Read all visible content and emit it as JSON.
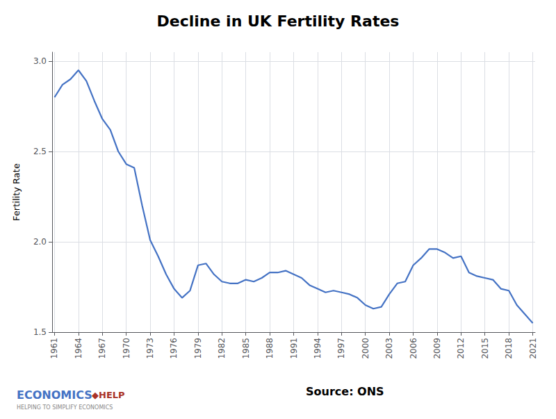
{
  "chart_data": {
    "type": "line",
    "title": "Decline in UK Fertility Rates",
    "ylabel": "Fertility Rate",
    "x": [
      1961,
      1962,
      1963,
      1964,
      1965,
      1966,
      1967,
      1968,
      1969,
      1970,
      1971,
      1972,
      1973,
      1974,
      1975,
      1976,
      1977,
      1978,
      1979,
      1980,
      1981,
      1982,
      1983,
      1984,
      1985,
      1986,
      1987,
      1988,
      1989,
      1990,
      1991,
      1992,
      1993,
      1994,
      1995,
      1996,
      1997,
      1998,
      1999,
      2000,
      2001,
      2002,
      2003,
      2004,
      2005,
      2006,
      2007,
      2008,
      2009,
      2010,
      2011,
      2012,
      2013,
      2014,
      2015,
      2016,
      2017,
      2018,
      2019,
      2020,
      2021
    ],
    "values": [
      2.8,
      2.87,
      2.9,
      2.95,
      2.89,
      2.78,
      2.68,
      2.62,
      2.5,
      2.43,
      2.41,
      2.2,
      2.01,
      1.92,
      1.82,
      1.74,
      1.69,
      1.73,
      1.87,
      1.88,
      1.82,
      1.78,
      1.77,
      1.77,
      1.79,
      1.78,
      1.8,
      1.83,
      1.83,
      1.84,
      1.82,
      1.8,
      1.76,
      1.74,
      1.72,
      1.73,
      1.72,
      1.71,
      1.69,
      1.65,
      1.63,
      1.64,
      1.71,
      1.77,
      1.78,
      1.87,
      1.91,
      1.96,
      1.96,
      1.94,
      1.91,
      1.92,
      1.83,
      1.81,
      1.8,
      1.79,
      1.74,
      1.73,
      1.65,
      1.6,
      1.55
    ],
    "color": "#4472C4",
    "xlim": [
      1960.7,
      2021.3
    ],
    "xticks": [
      1961,
      1964,
      1967,
      1970,
      1973,
      1976,
      1979,
      1982,
      1985,
      1988,
      1991,
      1994,
      1997,
      2000,
      2003,
      2006,
      2009,
      2012,
      2015,
      2018,
      2021
    ],
    "ylim": [
      1.5,
      3.05
    ],
    "yticks": [
      1.5,
      {
        "value": 2,
        "label": "2.0"
      },
      2.5,
      {
        "value": 3,
        "label": "3.0"
      }
    ],
    "grid": true,
    "annotations": [
      {
        "text": "Source: ONS"
      },
      {
        "text": "ECONOMICS",
        "color": "#4472C4"
      },
      {
        "text": "◆HELP",
        "color": "#A93226"
      },
      {
        "text": "HELPING TO SIMPLIFY ECONOMICS",
        "color": "#888888"
      }
    ]
  }
}
